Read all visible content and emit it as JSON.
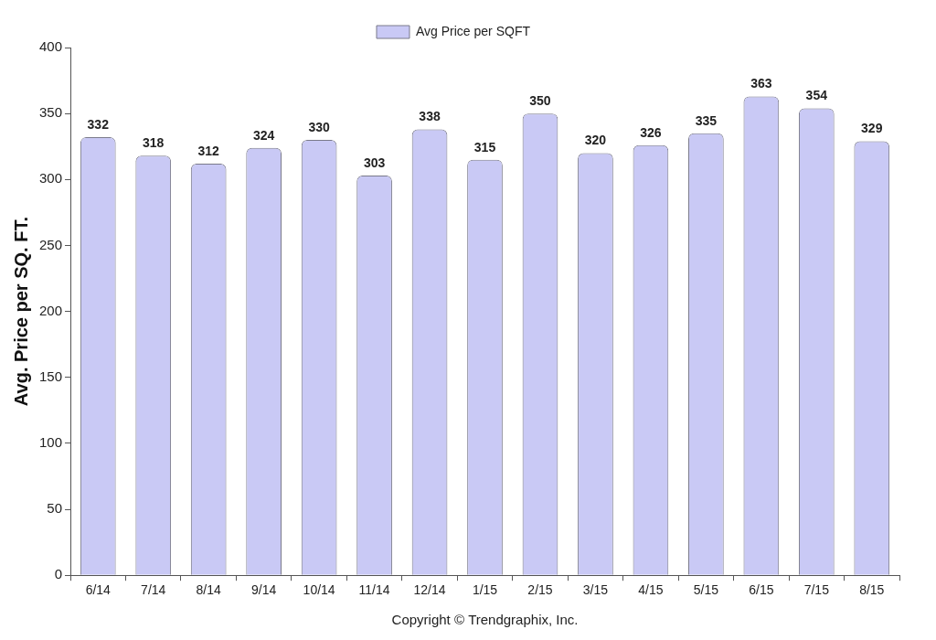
{
  "chart_data": {
    "type": "bar",
    "x_label": "Copyright © Trendgraphix, Inc.",
    "y_label": "Avg. Price per SQ. FT.",
    "categories": [
      "6/14",
      "7/14",
      "8/14",
      "9/14",
      "10/14",
      "11/14",
      "12/14",
      "1/15",
      "2/15",
      "3/15",
      "4/15",
      "5/15",
      "6/15",
      "7/15",
      "8/15"
    ],
    "series": [
      {
        "name": "Avg Price per SQFT",
        "color": "#c9c9f5",
        "values": [
          332,
          318,
          312,
          324,
          330,
          303,
          338,
          315,
          350,
          320,
          326,
          335,
          363,
          354,
          329
        ]
      }
    ],
    "ylim": [
      0,
      400
    ],
    "yticks": [
      0,
      50,
      100,
      150,
      200,
      250,
      300,
      350,
      400
    ],
    "grid": false,
    "legend": "top",
    "data_labels": true
  }
}
